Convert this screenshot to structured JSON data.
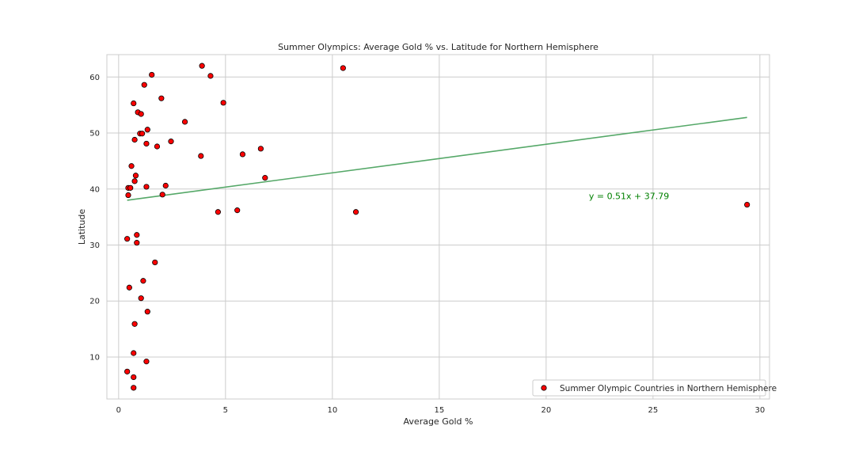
{
  "chart_data": {
    "type": "scatter",
    "title": "Summer Olympics: Average Gold % vs. Latitude for Northern Hemisphere",
    "xlabel": "Average Gold %",
    "ylabel": "Latitude",
    "xlim": [
      -0.55,
      30.45
    ],
    "ylim": [
      2.5,
      64.0
    ],
    "xticks": [
      0,
      5,
      10,
      15,
      20,
      25,
      30
    ],
    "yticks": [
      10,
      20,
      30,
      40,
      50,
      60
    ],
    "grid": true,
    "legend": {
      "position": "lower-right",
      "entries": [
        "Summer Olympic Countries in Northern Hemisphere"
      ]
    },
    "series": [
      {
        "name": "Summer Olympic Countries in Northern Hemisphere",
        "color": "#ff0000",
        "edgecolor": "#000000",
        "points": [
          [
            3.9,
            62.0
          ],
          [
            10.5,
            61.6
          ],
          [
            1.55,
            60.4
          ],
          [
            4.3,
            60.2
          ],
          [
            1.2,
            58.6
          ],
          [
            2.0,
            56.2
          ],
          [
            0.7,
            55.3
          ],
          [
            4.9,
            55.4
          ],
          [
            0.9,
            53.7
          ],
          [
            1.05,
            53.4
          ],
          [
            3.1,
            52.0
          ],
          [
            1.35,
            50.6
          ],
          [
            1.0,
            49.9
          ],
          [
            1.1,
            49.9
          ],
          [
            0.75,
            48.8
          ],
          [
            1.3,
            48.1
          ],
          [
            2.45,
            48.5
          ],
          [
            1.8,
            47.6
          ],
          [
            6.65,
            47.2
          ],
          [
            5.8,
            46.2
          ],
          [
            3.85,
            45.9
          ],
          [
            0.6,
            44.1
          ],
          [
            0.8,
            42.4
          ],
          [
            6.85,
            42.0
          ],
          [
            0.75,
            41.4
          ],
          [
            2.2,
            40.6
          ],
          [
            0.45,
            40.2
          ],
          [
            0.55,
            40.2
          ],
          [
            1.3,
            40.4
          ],
          [
            2.05,
            39.0
          ],
          [
            0.45,
            38.9
          ],
          [
            4.65,
            35.9
          ],
          [
            5.55,
            36.2
          ],
          [
            11.1,
            35.9
          ],
          [
            29.4,
            37.2
          ],
          [
            0.85,
            31.8
          ],
          [
            0.4,
            31.1
          ],
          [
            0.85,
            30.4
          ],
          [
            1.7,
            26.9
          ],
          [
            1.15,
            23.6
          ],
          [
            0.5,
            22.4
          ],
          [
            1.05,
            20.5
          ],
          [
            1.35,
            18.1
          ],
          [
            0.75,
            15.9
          ],
          [
            0.7,
            10.7
          ],
          [
            1.3,
            9.2
          ],
          [
            0.4,
            7.4
          ],
          [
            0.7,
            6.4
          ],
          [
            0.7,
            4.5
          ]
        ]
      }
    ],
    "regression": {
      "color": "#55a868",
      "slope": 0.51,
      "intercept": 37.79,
      "x_range": [
        0.4,
        29.4
      ],
      "equation_label": "y = 0.51x + 37.79",
      "label_position": [
        22.0,
        38.2
      ]
    }
  }
}
